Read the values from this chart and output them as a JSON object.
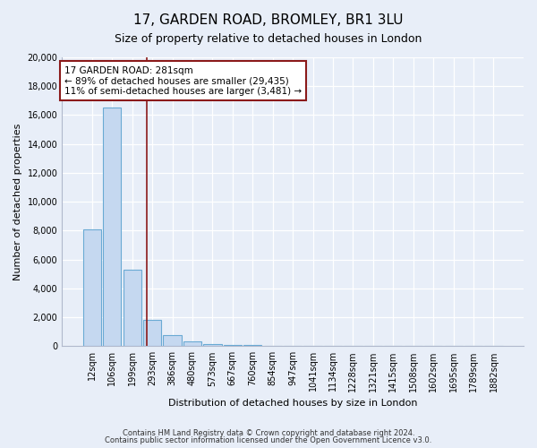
{
  "title": "17, GARDEN ROAD, BROMLEY, BR1 3LU",
  "subtitle": "Size of property relative to detached houses in London",
  "xlabel": "Distribution of detached houses by size in London",
  "ylabel": "Number of detached properties",
  "categories": [
    "12sqm",
    "106sqm",
    "199sqm",
    "293sqm",
    "386sqm",
    "480sqm",
    "573sqm",
    "667sqm",
    "760sqm",
    "854sqm",
    "947sqm",
    "1041sqm",
    "1134sqm",
    "1228sqm",
    "1321sqm",
    "1415sqm",
    "1508sqm",
    "1602sqm",
    "1695sqm",
    "1789sqm",
    "1882sqm"
  ],
  "values": [
    8100,
    16500,
    5300,
    1800,
    780,
    310,
    130,
    100,
    70,
    0,
    0,
    0,
    0,
    0,
    0,
    0,
    0,
    0,
    0,
    0,
    0
  ],
  "bar_color": "#c5d8f0",
  "bar_edge_color": "#6aaad4",
  "vline_x_index": 2.73,
  "vline_color": "#8b1a1a",
  "annotation_line1": "17 GARDEN ROAD: 281sqm",
  "annotation_line2": "← 89% of detached houses are smaller (29,435)",
  "annotation_line3": "11% of semi-detached houses are larger (3,481) →",
  "annotation_box_color": "#ffffff",
  "annotation_box_edge": "#8b1a1a",
  "ylim": [
    0,
    20000
  ],
  "yticks": [
    0,
    2000,
    4000,
    6000,
    8000,
    10000,
    12000,
    14000,
    16000,
    18000,
    20000
  ],
  "footer1": "Contains HM Land Registry data © Crown copyright and database right 2024.",
  "footer2": "Contains public sector information licensed under the Open Government Licence v3.0.",
  "background_color": "#e8eef8",
  "plot_bg_color": "#e8eef8",
  "grid_color": "#ffffff",
  "title_fontsize": 11,
  "subtitle_fontsize": 9,
  "tick_fontsize": 7,
  "ylabel_fontsize": 8,
  "xlabel_fontsize": 8,
  "footer_fontsize": 6,
  "annot_fontsize": 7.5
}
